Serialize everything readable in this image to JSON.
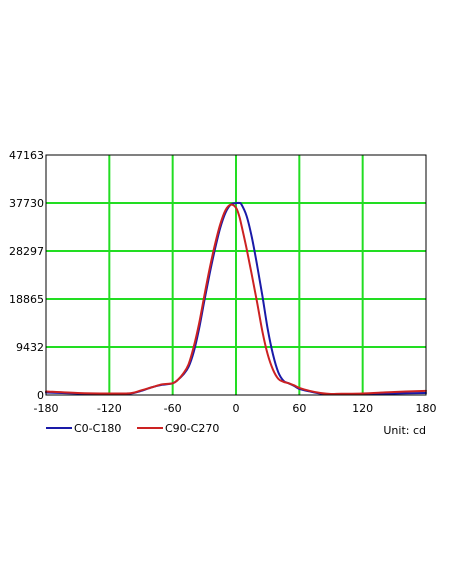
{
  "chart_data": {
    "type": "line",
    "title": "",
    "xlabel": "",
    "ylabel": "",
    "unit_text": "Unit: cd",
    "xlim": [
      -180,
      180
    ],
    "ylim": [
      0,
      47163
    ],
    "x_ticks": [
      -180,
      -120,
      -60,
      0,
      60,
      120,
      180
    ],
    "x_tick_labels": [
      "-180",
      "-120",
      "-60",
      "0",
      "60",
      "120",
      "180"
    ],
    "y_ticks": [
      0,
      9432,
      18865,
      28297,
      37730,
      47163
    ],
    "y_tick_labels": [
      "0",
      "9432",
      "18865",
      "28297",
      "37730",
      "47163"
    ],
    "grid": true,
    "grid_color": "#22dd22",
    "legend_position": "bottom-left",
    "series": [
      {
        "name": "C0-C180",
        "color": "#1a1aa8",
        "x": [
          -180,
          -150,
          -120,
          -100,
          -90,
          -80,
          -70,
          -60,
          -55,
          -50,
          -45,
          -40,
          -35,
          -30,
          -25,
          -20,
          -15,
          -10,
          -5,
          0,
          3,
          5,
          10,
          15,
          20,
          25,
          30,
          35,
          40,
          45,
          50,
          55,
          60,
          70,
          80,
          90,
          100,
          120,
          150,
          180
        ],
        "y": [
          500,
          300,
          200,
          300,
          800,
          1500,
          2000,
          2300,
          3000,
          4000,
          5500,
          8500,
          13000,
          18500,
          23800,
          28600,
          32800,
          35800,
          37400,
          37700,
          37730,
          37500,
          35200,
          31000,
          25500,
          19500,
          13000,
          8000,
          4500,
          2800,
          2300,
          1800,
          1200,
          700,
          300,
          150,
          150,
          200,
          300,
          400
        ]
      },
      {
        "name": "C90-C270",
        "color": "#cc2222",
        "x": [
          -180,
          -150,
          -120,
          -100,
          -90,
          -80,
          -70,
          -60,
          -55,
          -50,
          -45,
          -40,
          -35,
          -30,
          -25,
          -20,
          -15,
          -10,
          -5,
          0,
          3,
          5,
          10,
          15,
          20,
          25,
          30,
          35,
          40,
          45,
          50,
          55,
          60,
          70,
          80,
          90,
          100,
          120,
          150,
          180
        ],
        "y": [
          700,
          400,
          300,
          350,
          900,
          1500,
          2100,
          2300,
          3000,
          4200,
          6000,
          9500,
          14000,
          19500,
          24800,
          29500,
          33500,
          36300,
          37400,
          36800,
          35200,
          33500,
          28800,
          23600,
          18200,
          12500,
          8000,
          5000,
          3200,
          2600,
          2300,
          1900,
          1400,
          800,
          400,
          200,
          250,
          300,
          600,
          800
        ]
      }
    ]
  }
}
